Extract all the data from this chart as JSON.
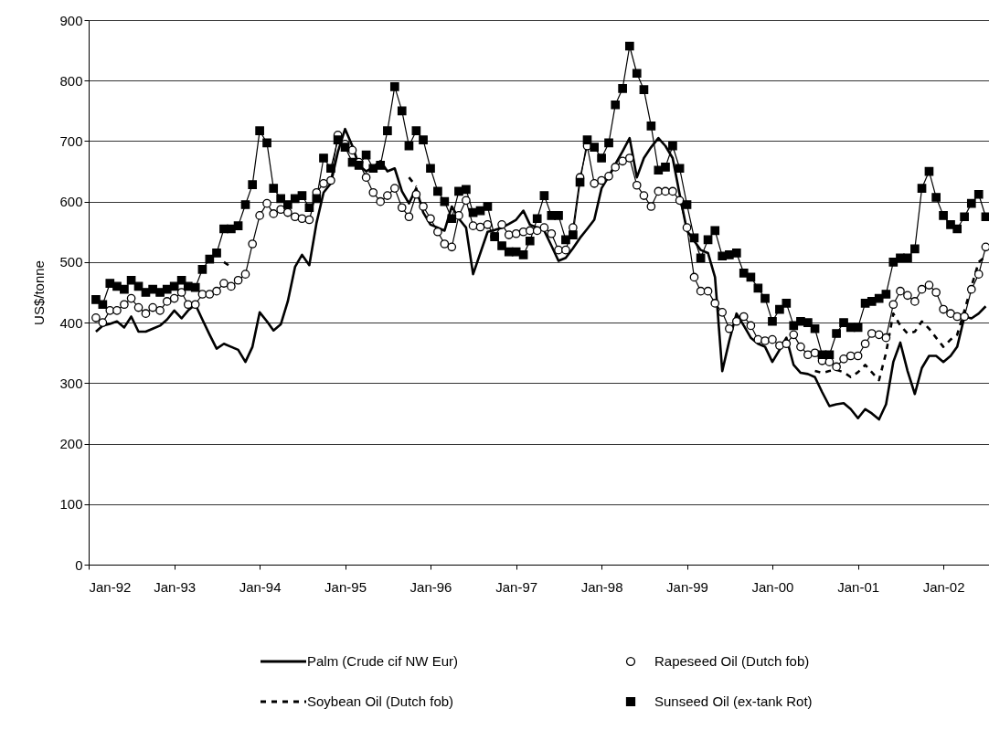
{
  "chart_data": {
    "type": "line",
    "ylabel": "US$/tonne",
    "x": [
      "1992-02",
      "1992-03",
      "1992-04",
      "1992-05",
      "1992-06",
      "1992-07",
      "1992-08",
      "1992-09",
      "1992-10",
      "1992-11",
      "1992-12",
      "1993-01",
      "1993-02",
      "1993-03",
      "1993-04",
      "1993-05",
      "1993-06",
      "1993-07",
      "1993-08",
      "1993-09",
      "1993-10",
      "1993-11",
      "1993-12",
      "1994-01",
      "1994-02",
      "1994-03",
      "1994-04",
      "1994-05",
      "1994-06",
      "1994-07",
      "1994-08",
      "1994-09",
      "1994-10",
      "1994-11",
      "1994-12",
      "1995-01",
      "1995-02",
      "1995-03",
      "1995-04",
      "1995-05",
      "1995-06",
      "1995-07",
      "1995-08",
      "1995-09",
      "1995-10",
      "1995-11",
      "1995-12",
      "1996-01",
      "1996-02",
      "1996-03",
      "1996-04",
      "1996-05",
      "1996-06",
      "1996-07",
      "1996-08",
      "1996-09",
      "1996-10",
      "1996-11",
      "1996-12",
      "1997-01",
      "1997-02",
      "1997-03",
      "1997-04",
      "1997-05",
      "1997-06",
      "1997-07",
      "1997-08",
      "1997-09",
      "1997-10",
      "1997-11",
      "1997-12",
      "1998-01",
      "1998-02",
      "1998-03",
      "1998-04",
      "1998-05",
      "1998-06",
      "1998-07",
      "1998-08",
      "1998-09",
      "1998-10",
      "1998-11",
      "1998-12",
      "1999-01",
      "1999-02",
      "1999-03",
      "1999-04",
      "1999-05",
      "1999-06",
      "1999-07",
      "1999-08",
      "1999-09",
      "1999-10",
      "1999-11",
      "1999-12",
      "2000-01",
      "2000-02",
      "2000-03",
      "2000-04",
      "2000-05",
      "2000-06",
      "2000-07",
      "2000-08",
      "2000-09",
      "2000-10",
      "2000-11",
      "2000-12",
      "2001-01",
      "2001-02",
      "2001-03",
      "2001-04",
      "2001-05",
      "2001-06",
      "2001-07",
      "2001-08",
      "2001-09",
      "2001-10",
      "2001-11",
      "2001-12",
      "2002-01",
      "2002-02",
      "2002-03",
      "2002-04",
      "2002-05",
      "2002-06",
      "2002-07"
    ],
    "xlim": [
      "1992-01",
      "2002-07-15"
    ],
    "xticks": [
      {
        "value": "1992-01",
        "label": "Jan-92"
      },
      {
        "value": "1993-01",
        "label": "Jan-93"
      },
      {
        "value": "1994-01",
        "label": "Jan-94"
      },
      {
        "value": "1995-01",
        "label": "Jan-95"
      },
      {
        "value": "1996-01",
        "label": "Jan-96"
      },
      {
        "value": "1997-01",
        "label": "Jan-97"
      },
      {
        "value": "1998-01",
        "label": "Jan-98"
      },
      {
        "value": "1999-01",
        "label": "Jan-99"
      },
      {
        "value": "2000-01",
        "label": "Jan-00"
      },
      {
        "value": "2001-01",
        "label": "Jan-01"
      },
      {
        "value": "2002-01",
        "label": "Jan-02"
      }
    ],
    "ylim": [
      0,
      900
    ],
    "yticks": [
      0,
      100,
      200,
      300,
      400,
      500,
      600,
      700,
      800,
      900
    ],
    "grid": "y",
    "legend": "bottom",
    "series": [
      {
        "name": "Palm (Crude cif NW Eur)",
        "color": "#000000",
        "line_style": "solid",
        "marker": "none",
        "values": [
          385,
          395,
          398,
          402,
          392,
          410,
          385,
          385,
          390,
          395,
          405,
          420,
          407,
          420,
          430,
          405,
          380,
          357,
          365,
          360,
          355,
          335,
          360,
          417,
          402,
          387,
          397,
          435,
          492,
          512,
          495,
          565,
          615,
          630,
          682,
          720,
          692,
          660,
          650,
          657,
          667,
          650,
          655,
          617,
          597,
          622,
          582,
          562,
          557,
          552,
          592,
          572,
          557,
          480,
          515,
          550,
          553,
          557,
          563,
          570,
          585,
          562,
          557,
          552,
          527,
          502,
          507,
          523,
          540,
          555,
          570,
          622,
          642,
          662,
          683,
          705,
          640,
          672,
          690,
          705,
          692,
          672,
          612,
          552,
          535,
          520,
          515,
          475,
          320,
          370,
          415,
          395,
          375,
          365,
          360,
          335,
          355,
          375,
          330,
          317,
          315,
          310,
          285,
          262,
          265,
          267,
          257,
          242,
          257,
          250,
          240,
          265,
          335,
          367,
          320,
          282,
          325,
          345,
          345,
          335,
          345,
          360,
          410,
          407,
          415,
          427
        ]
      },
      {
        "name": "Soybean Oil (Dutch fob)",
        "color": "#000000",
        "line_style": "dashed",
        "marker": "none",
        "values": [
          null,
          null,
          null,
          null,
          null,
          null,
          null,
          null,
          null,
          null,
          null,
          null,
          null,
          null,
          null,
          null,
          null,
          null,
          500,
          492,
          null,
          null,
          null,
          null,
          null,
          null,
          null,
          null,
          null,
          null,
          null,
          null,
          null,
          null,
          null,
          null,
          null,
          null,
          null,
          null,
          null,
          null,
          null,
          null,
          640,
          625,
          null,
          null,
          null,
          null,
          null,
          null,
          null,
          null,
          null,
          null,
          null,
          null,
          null,
          null,
          null,
          null,
          null,
          null,
          null,
          null,
          null,
          null,
          null,
          null,
          null,
          null,
          null,
          null,
          null,
          null,
          null,
          null,
          null,
          null,
          null,
          null,
          null,
          null,
          null,
          null,
          null,
          null,
          null,
          null,
          null,
          null,
          null,
          null,
          null,
          null,
          null,
          null,
          null,
          null,
          null,
          320,
          317,
          320,
          322,
          318,
          310,
          318,
          330,
          318,
          305,
          350,
          415,
          395,
          382,
          385,
          402,
          390,
          375,
          360,
          372,
          380,
          420,
          460,
          500,
          510
        ]
      },
      {
        "name": "Rapeseed Oil (Dutch fob)",
        "color": "#000000",
        "line_style": "solid",
        "marker": "circle",
        "values": [
          408,
          400,
          420,
          420,
          430,
          440,
          425,
          415,
          425,
          420,
          435,
          440,
          450,
          430,
          430,
          447,
          447,
          452,
          465,
          460,
          470,
          480,
          530,
          577,
          597,
          580,
          587,
          582,
          575,
          572,
          570,
          615,
          630,
          635,
          710,
          695,
          685,
          665,
          640,
          615,
          600,
          610,
          622,
          590,
          575,
          612,
          592,
          572,
          550,
          530,
          525,
          577,
          602,
          560,
          558,
          562,
          542,
          562,
          545,
          547,
          550,
          552,
          552,
          557,
          547,
          520,
          520,
          557,
          640,
          692,
          630,
          635,
          642,
          657,
          667,
          672,
          627,
          610,
          592,
          617,
          617,
          617,
          602,
          557,
          475,
          452,
          452,
          432,
          417,
          390,
          402,
          410,
          395,
          372,
          370,
          372,
          362,
          365,
          380,
          360,
          347,
          350,
          337,
          335,
          327,
          340,
          345,
          345,
          365,
          382,
          380,
          375,
          430,
          452,
          445,
          435,
          455,
          462,
          450,
          422,
          415,
          410,
          410,
          455,
          480,
          525
        ]
      },
      {
        "name": "Sunseed Oil (ex-tank Rot)",
        "color": "#000000",
        "line_style": "solid",
        "marker": "square",
        "values": [
          438,
          430,
          465,
          460,
          455,
          470,
          460,
          450,
          455,
          450,
          455,
          460,
          470,
          460,
          458,
          488,
          505,
          515,
          555,
          555,
          560,
          595,
          628,
          717,
          697,
          622,
          605,
          595,
          605,
          610,
          590,
          605,
          672,
          655,
          702,
          690,
          665,
          660,
          677,
          655,
          660,
          717,
          790,
          750,
          692,
          717,
          702,
          655,
          617,
          600,
          572,
          617,
          620,
          582,
          585,
          592,
          542,
          527,
          517,
          517,
          512,
          535,
          572,
          610,
          577,
          577,
          537,
          545,
          632,
          702,
          690,
          672,
          697,
          760,
          787,
          857,
          812,
          785,
          725,
          652,
          657,
          692,
          655,
          595,
          540,
          507,
          537,
          552,
          510,
          512,
          515,
          482,
          475,
          457,
          440,
          402,
          422,
          432,
          395,
          402,
          400,
          390,
          347,
          347,
          382,
          400,
          392,
          392,
          432,
          435,
          440,
          447,
          500,
          507,
          507,
          522,
          622,
          650,
          607,
          577,
          562,
          555,
          575,
          597,
          612,
          575
        ]
      }
    ]
  }
}
